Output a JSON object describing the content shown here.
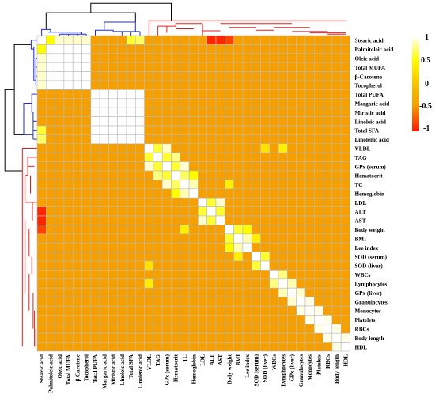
{
  "chart_data": {
    "type": "heatmap",
    "variables": [
      "Stearic acid",
      "Palmitoleic acid",
      "Oleic acid",
      "Total MUFA",
      "β-Carotene",
      "Tocopherol",
      "Total PUFA",
      "Margaric acid",
      "Miristic acid",
      "Linoleic acid",
      "Total SFA",
      "Linolenic acid",
      "VLDL",
      "TAG",
      "GPx (serum)",
      "Hematocrit",
      "TC",
      "Hemoglobin",
      "LDL",
      "ALT",
      "AST",
      "Body weight",
      "BMI",
      "Lee index",
      "SOD (serum)",
      "SOD (liver)",
      "WBCs",
      "Lymphocytes",
      "GPx (liver)",
      "Granulocytes",
      "Monocytes",
      "Platelets",
      "RBCs",
      "Body length",
      "HDL"
    ],
    "colorbar": {
      "ticks": [
        1,
        0.5,
        0,
        -0.5,
        -1
      ],
      "labels": [
        "1",
        "0.5",
        "0",
        "-0.5",
        "-1"
      ],
      "range": [
        -1,
        1
      ]
    },
    "colors": {
      "high": "#ffffff",
      "mid_high": "#fffc00",
      "low": "#ff1800",
      "base": "#f5a000",
      "grid": "#b9b9b9",
      "dendro_black": "#000000",
      "dendro_blue": "#1d2bd6",
      "dendro_red": "#e02020"
    },
    "default_value": -0.4,
    "cells": [
      [
        0,
        1,
        0.5
      ],
      [
        0,
        2,
        0.9
      ],
      [
        0,
        3,
        0.9
      ],
      [
        0,
        4,
        0.9
      ],
      [
        0,
        5,
        0.9
      ],
      [
        0,
        10,
        0.6
      ],
      [
        0,
        11,
        0.7
      ],
      [
        0,
        19,
        -0.95
      ],
      [
        0,
        20,
        -0.95
      ],
      [
        0,
        21,
        -0.85
      ],
      [
        1,
        2,
        1
      ],
      [
        1,
        3,
        1
      ],
      [
        1,
        4,
        1
      ],
      [
        1,
        5,
        1
      ],
      [
        2,
        3,
        1
      ],
      [
        2,
        4,
        1
      ],
      [
        2,
        5,
        1
      ],
      [
        3,
        4,
        1
      ],
      [
        3,
        5,
        1
      ],
      [
        4,
        5,
        1
      ],
      [
        6,
        7,
        1
      ],
      [
        6,
        8,
        1
      ],
      [
        6,
        9,
        1
      ],
      [
        6,
        10,
        1
      ],
      [
        6,
        11,
        1
      ],
      [
        7,
        8,
        1
      ],
      [
        7,
        9,
        1
      ],
      [
        7,
        10,
        1
      ],
      [
        7,
        11,
        1
      ],
      [
        8,
        9,
        1
      ],
      [
        8,
        10,
        1
      ],
      [
        8,
        11,
        1
      ],
      [
        9,
        10,
        1
      ],
      [
        9,
        11,
        1
      ],
      [
        10,
        11,
        1
      ],
      [
        12,
        13,
        0.6
      ],
      [
        12,
        14,
        0.9
      ],
      [
        12,
        25,
        0.3
      ],
      [
        12,
        27,
        0.4
      ],
      [
        13,
        14,
        0.6
      ],
      [
        13,
        15,
        0.75
      ],
      [
        14,
        15,
        0.6
      ],
      [
        14,
        16,
        0.9
      ],
      [
        15,
        16,
        0.7
      ],
      [
        15,
        17,
        0.5
      ],
      [
        16,
        17,
        0.85
      ],
      [
        16,
        21,
        0.4
      ],
      [
        18,
        19,
        0.6
      ],
      [
        18,
        20,
        0.9
      ],
      [
        19,
        20,
        0.6
      ],
      [
        21,
        22,
        0.6
      ],
      [
        21,
        23,
        0.5
      ],
      [
        22,
        23,
        0.85
      ],
      [
        22,
        24,
        0.4
      ],
      [
        24,
        25,
        0.6
      ],
      [
        26,
        27,
        0.75
      ],
      [
        27,
        28,
        0.85
      ],
      [
        28,
        29,
        0.9
      ],
      [
        29,
        30,
        0.95
      ],
      [
        30,
        31,
        0.95
      ],
      [
        31,
        32,
        0.95
      ],
      [
        32,
        33,
        0.95
      ],
      [
        33,
        34,
        0.95
      ]
    ],
    "dendrogram_top": [
      {
        "c": "dendro_black",
        "p": [
          [
            5.5,
            -34
          ],
          [
            5.5,
            -48
          ],
          [
            14.5,
            -48
          ],
          [
            14.5,
            -22
          ]
        ]
      },
      {
        "c": "dendro_black",
        "p": [
          [
            0.5,
            -9
          ],
          [
            0.5,
            -34
          ],
          [
            10.5,
            -34
          ],
          [
            10.5,
            -20
          ]
        ]
      },
      {
        "c": "dendro_blue",
        "p": [
          [
            0,
            0
          ],
          [
            0,
            -9
          ],
          [
            1,
            -9
          ],
          [
            1,
            -5
          ]
        ]
      },
      {
        "c": "dendro_blue",
        "p": [
          [
            0.75,
            -5
          ],
          [
            4.5,
            -5
          ],
          [
            4.5,
            -2
          ]
        ]
      },
      {
        "c": "dendro_blue",
        "p": [
          [
            2,
            -2
          ],
          [
            5,
            -2
          ]
        ]
      },
      {
        "c": "dendro_blue",
        "p": [
          [
            2,
            0
          ],
          [
            2,
            -2
          ]
        ]
      },
      {
        "c": "dendro_blue",
        "p": [
          [
            3,
            0
          ],
          [
            3,
            -2
          ]
        ]
      },
      {
        "c": "dendro_blue",
        "p": [
          [
            4,
            0
          ],
          [
            4,
            -2
          ]
        ]
      },
      {
        "c": "dendro_blue",
        "p": [
          [
            5,
            0
          ],
          [
            5,
            -2
          ]
        ]
      },
      {
        "c": "dendro_blue",
        "p": [
          [
            7,
            -8
          ],
          [
            7,
            -20
          ],
          [
            10.5,
            -20
          ],
          [
            10.5,
            -6
          ]
        ]
      },
      {
        "c": "dendro_blue",
        "p": [
          [
            8,
            -6
          ],
          [
            11,
            -6
          ]
        ]
      },
      {
        "c": "dendro_blue",
        "p": [
          [
            6,
            0
          ],
          [
            6,
            -8
          ],
          [
            8,
            -8
          ],
          [
            8,
            -6
          ]
        ]
      },
      {
        "c": "dendro_blue",
        "p": [
          [
            9,
            0
          ],
          [
            9,
            -6
          ]
        ]
      },
      {
        "c": "dendro_blue",
        "p": [
          [
            10,
            0
          ],
          [
            10,
            -6
          ]
        ]
      },
      {
        "c": "dendro_blue",
        "p": [
          [
            11,
            0
          ],
          [
            11,
            -6
          ]
        ]
      },
      {
        "c": "dendro_red",
        "p": [
          [
            12,
            -22
          ],
          [
            34,
            -22
          ]
        ]
      },
      {
        "c": "dendro_red",
        "p": [
          [
            12,
            0
          ],
          [
            12,
            -22
          ]
        ]
      },
      {
        "c": "dendro_red",
        "p": [
          [
            13,
            -14
          ],
          [
            15,
            -14
          ],
          [
            15,
            -18
          ],
          [
            18,
            -18
          ]
        ]
      },
      {
        "c": "dendro_red",
        "p": [
          [
            13,
            0
          ],
          [
            13,
            -14
          ]
        ]
      },
      {
        "c": "dendro_red",
        "p": [
          [
            14,
            -4
          ],
          [
            14,
            -14
          ]
        ]
      },
      {
        "c": "dendro_red",
        "p": [
          [
            15,
            -10
          ],
          [
            17,
            -10
          ]
        ]
      },
      {
        "c": "dendro_red",
        "p": [
          [
            18,
            -7
          ],
          [
            20,
            -7
          ]
        ]
      },
      {
        "c": "dendro_red",
        "p": [
          [
            18,
            0
          ],
          [
            18,
            -18
          ]
        ]
      },
      {
        "c": "dendro_red",
        "p": [
          [
            20,
            -18
          ],
          [
            28,
            -18
          ]
        ]
      },
      {
        "c": "dendro_red",
        "p": [
          [
            21,
            -12
          ],
          [
            24,
            -12
          ]
        ]
      },
      {
        "c": "dendro_red",
        "p": [
          [
            24,
            -8
          ],
          [
            26,
            -8
          ]
        ]
      },
      {
        "c": "dendro_red",
        "p": [
          [
            26,
            -12
          ],
          [
            30,
            -12
          ]
        ]
      },
      {
        "c": "dendro_red",
        "p": [
          [
            28,
            -6
          ],
          [
            32,
            -6
          ]
        ]
      },
      {
        "c": "dendro_red",
        "p": [
          [
            30,
            -4
          ],
          [
            34,
            -4
          ]
        ]
      },
      {
        "c": "dendro_red",
        "p": [
          [
            32,
            -2
          ],
          [
            34,
            -2
          ]
        ]
      }
    ]
  }
}
